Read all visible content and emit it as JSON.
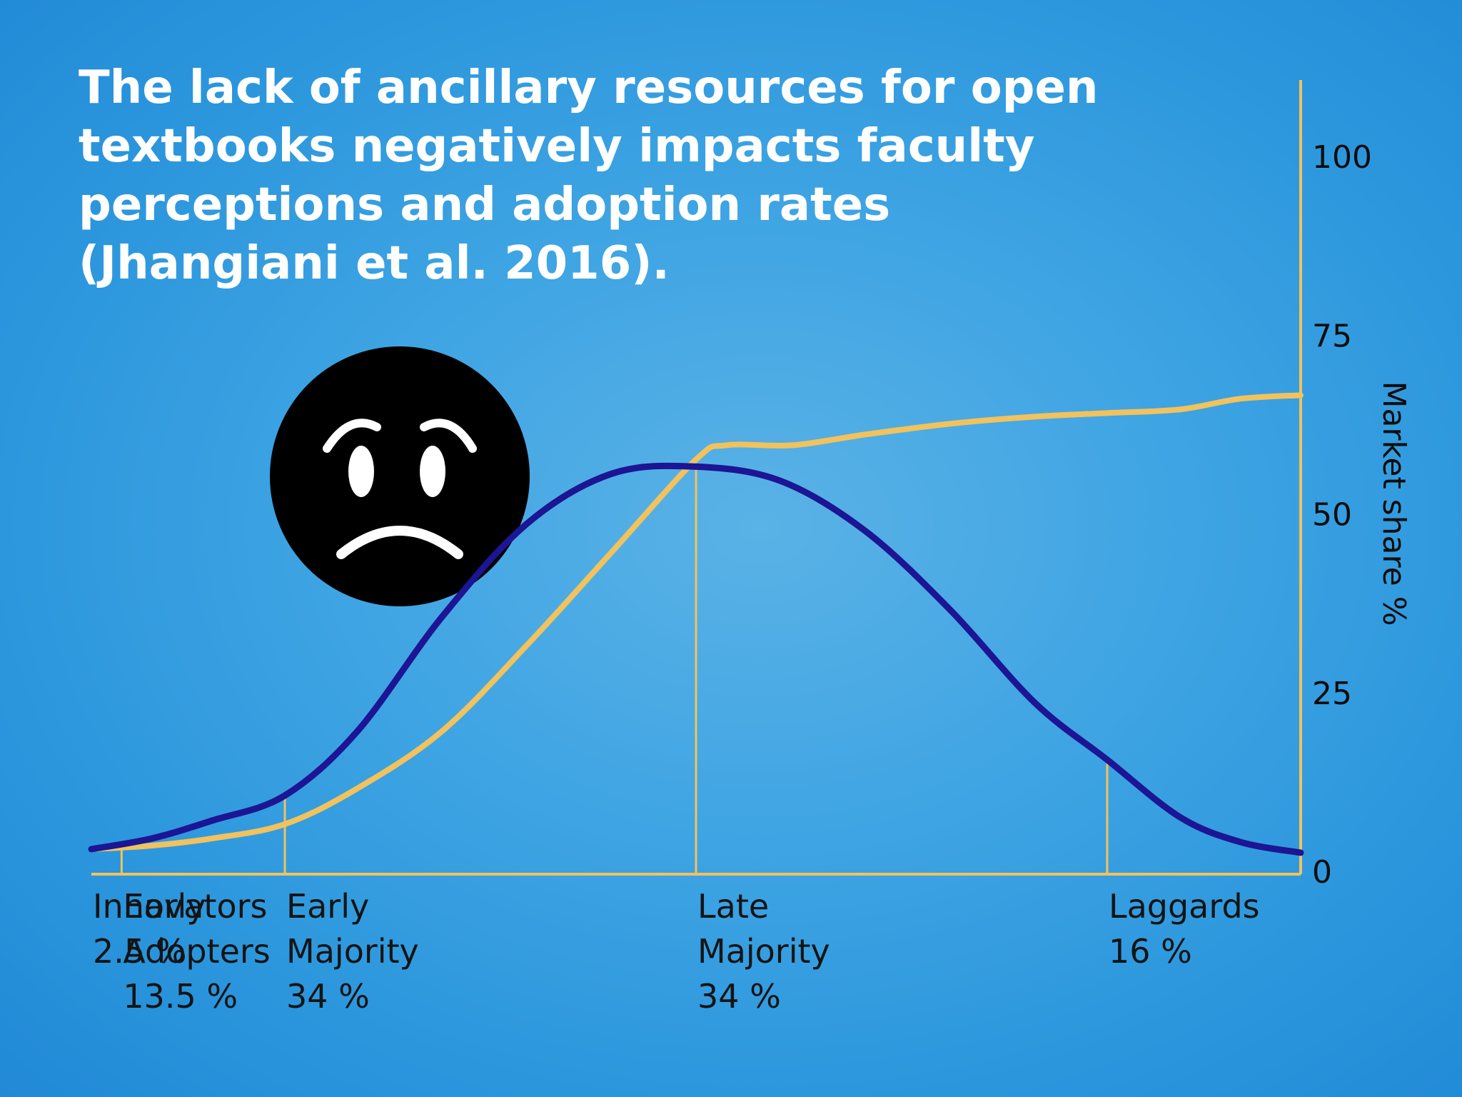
{
  "title_lines": [
    "The lack of ancillary resources for open",
    "textbooks negatively impacts faculty",
    "perceptions and adoption rates",
    "(Jhangiani et al. 2016)."
  ],
  "emoji": {
    "name": "sad-face-icon"
  },
  "chart_data": {
    "type": "line",
    "ylabel": "Market share %",
    "ylim": [
      0,
      100
    ],
    "yticks": [
      0,
      25,
      50,
      75,
      100
    ],
    "xlim": [
      0,
      100
    ],
    "segment_boundaries": [
      0,
      2.5,
      16,
      50,
      84,
      100
    ],
    "categories": [
      {
        "lines": [
          "Innovators",
          "2.5 %"
        ]
      },
      {
        "lines": [
          "Early",
          "Adopters",
          "13.5 %"
        ]
      },
      {
        "lines": [
          "Early",
          "Majority",
          "34 %"
        ]
      },
      {
        "lines": [
          "Late",
          "Majority",
          "34 %"
        ]
      },
      {
        "lines": [
          "Laggards",
          "16 %"
        ]
      }
    ],
    "series": [
      {
        "role": "adoption-curve",
        "color": "#1c1594",
        "x": [
          0,
          5,
          10,
          16,
          22,
          29,
          36,
          43,
          50,
          57,
          64,
          71,
          78,
          84,
          90,
          95,
          100
        ],
        "y": [
          3.5,
          5,
          7.5,
          11,
          20,
          36,
          49,
          56,
          57,
          55,
          48,
          37,
          24,
          16,
          8,
          4.5,
          3
        ]
      },
      {
        "role": "market-share",
        "color": "#f2c25d",
        "x": [
          0,
          5,
          10,
          16,
          22,
          29,
          36,
          43,
          50,
          52.5,
          58,
          64,
          71,
          78,
          84,
          90,
          95,
          100
        ],
        "y": [
          3.5,
          4,
          5,
          7,
          12,
          20,
          32,
          45,
          58,
          60,
          60,
          61.5,
          63,
          64,
          64.5,
          65,
          66.5,
          67
        ]
      }
    ]
  },
  "colors": {
    "background": "#3ea4e3",
    "axis": "#f2c25d",
    "title": "#ffffff"
  }
}
